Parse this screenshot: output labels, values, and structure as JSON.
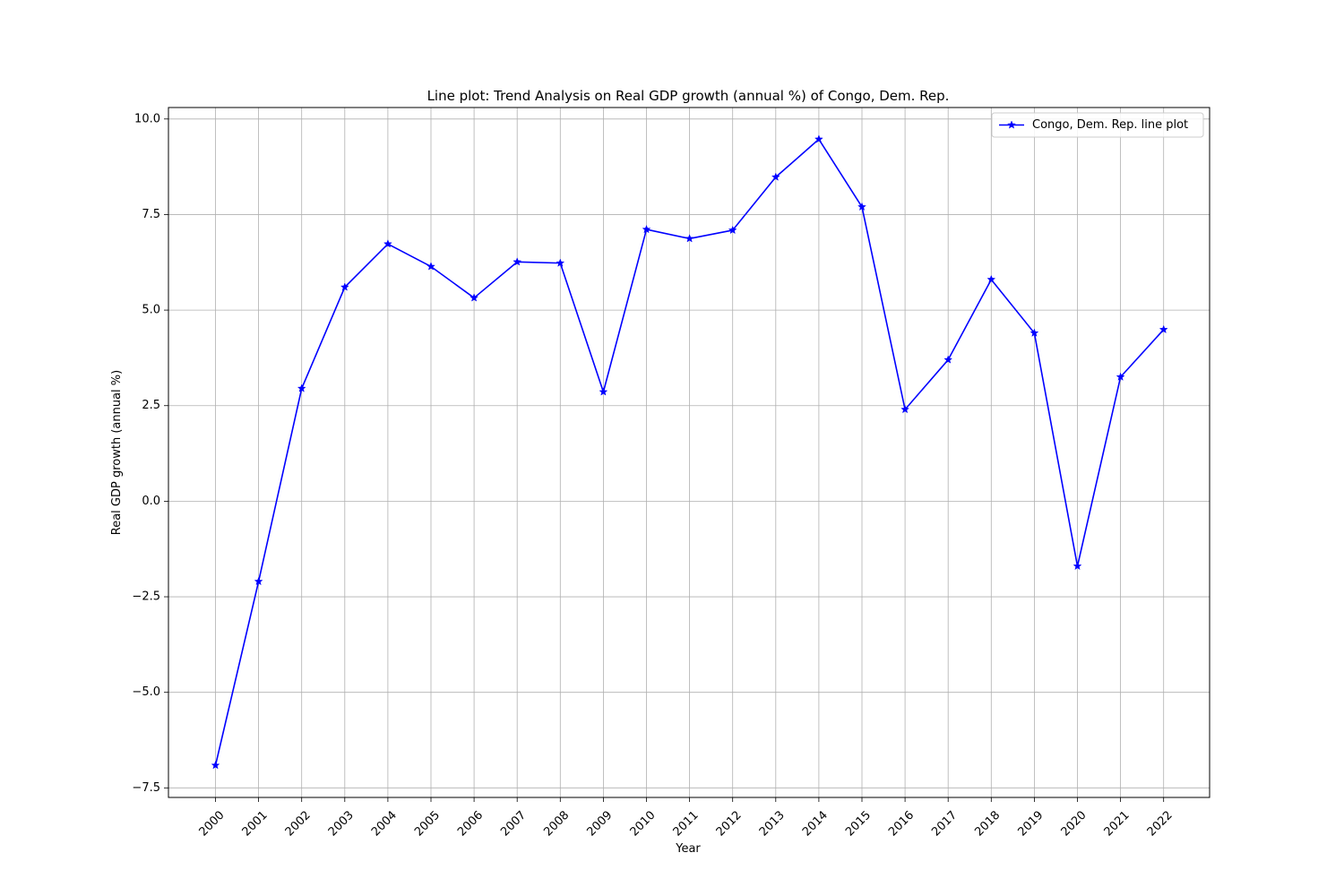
{
  "chart_data": {
    "type": "line",
    "title": "Line plot: Trend Analysis on Real GDP growth (annual %) of Congo, Dem. Rep.",
    "xlabel": "Year",
    "ylabel": "Real GDP growth (annual %)",
    "categories": [
      "2000",
      "2001",
      "2002",
      "2003",
      "2004",
      "2005",
      "2006",
      "2007",
      "2008",
      "2009",
      "2010",
      "2011",
      "2012",
      "2013",
      "2014",
      "2015",
      "2016",
      "2017",
      "2018",
      "2019",
      "2020",
      "2021",
      "2022"
    ],
    "series": [
      {
        "name": "Congo, Dem. Rep. line plot",
        "color": "#0000ff",
        "marker": "star",
        "values": [
          -6.91,
          -2.1,
          2.95,
          5.6,
          6.73,
          6.14,
          5.32,
          6.26,
          6.23,
          2.86,
          7.11,
          6.87,
          7.09,
          8.48,
          9.47,
          7.7,
          2.4,
          3.7,
          5.8,
          4.4,
          -1.7,
          3.25,
          4.49
        ]
      }
    ],
    "ylim": [
      -7.75,
      10.3
    ],
    "yticks": [
      -7.5,
      -5.0,
      -2.5,
      0.0,
      2.5,
      5.0,
      7.5,
      10.0
    ],
    "ytick_labels": [
      "−7.5",
      "−5.0",
      "−2.5",
      "0.0",
      "2.5",
      "5.0",
      "7.5",
      "10.0"
    ],
    "grid": true,
    "legend_position": "upper-right"
  }
}
